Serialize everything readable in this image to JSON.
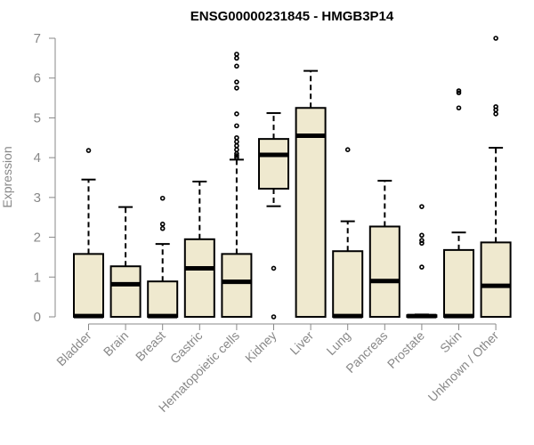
{
  "chart_data": {
    "type": "boxplot",
    "title": "ENSG00000231845 - HMGB3P14",
    "xlabel": "",
    "ylabel": "Expression",
    "ylim": [
      0,
      7
    ],
    "yticks": [
      0,
      1,
      2,
      3,
      4,
      5,
      6,
      7
    ],
    "box_color": "#efe9cf",
    "categories": [
      "Bladder",
      "Brain",
      "Breast",
      "Gastric",
      "Hematopoietic cells",
      "Kidney",
      "Liver",
      "Lung",
      "Pancreas",
      "Prostate",
      "Skin",
      "Unknown / Other"
    ],
    "boxes": [
      {
        "name": "Bladder",
        "min": 0,
        "q1": 0,
        "median": 0.02,
        "q3": 1.58,
        "max": 3.45,
        "outliers": [
          4.18
        ]
      },
      {
        "name": "Brain",
        "min": 0,
        "q1": 0,
        "median": 0.82,
        "q3": 1.27,
        "max": 2.76,
        "outliers": []
      },
      {
        "name": "Breast",
        "min": 0,
        "q1": 0,
        "median": 0.02,
        "q3": 0.89,
        "max": 1.83,
        "outliers": [
          2.22,
          2.33,
          2.98
        ]
      },
      {
        "name": "Gastric",
        "min": 0,
        "q1": 0,
        "median": 1.22,
        "q3": 1.95,
        "max": 3.4,
        "outliers": []
      },
      {
        "name": "Hematopoietic cells",
        "min": 0,
        "q1": 0,
        "median": 0.88,
        "q3": 1.58,
        "max": 3.95,
        "outliers": [
          4.0,
          4.05,
          4.1,
          4.2,
          4.3,
          4.4,
          4.5,
          4.8,
          5.1,
          5.75,
          5.9,
          6.3,
          6.5,
          6.6
        ]
      },
      {
        "name": "Kidney",
        "min": 2.78,
        "q1": 3.22,
        "median": 4.07,
        "q3": 4.47,
        "max": 5.12,
        "outliers": [
          0,
          1.22
        ]
      },
      {
        "name": "Liver",
        "min": 0,
        "q1": 0,
        "median": 4.55,
        "q3": 5.25,
        "max": 6.18,
        "outliers": []
      },
      {
        "name": "Lung",
        "min": 0,
        "q1": 0,
        "median": 0.02,
        "q3": 1.65,
        "max": 2.4,
        "outliers": [
          4.2
        ]
      },
      {
        "name": "Pancreas",
        "min": 0,
        "q1": 0,
        "median": 0.9,
        "q3": 2.27,
        "max": 3.42,
        "outliers": []
      },
      {
        "name": "Prostate",
        "min": 0,
        "q1": 0,
        "median": 0.02,
        "q3": 0.04,
        "max": 0.06,
        "outliers": [
          1.25,
          1.85,
          1.92,
          2.05,
          2.77
        ]
      },
      {
        "name": "Skin",
        "min": 0,
        "q1": 0,
        "median": 0.02,
        "q3": 1.68,
        "max": 2.12,
        "outliers": [
          5.25,
          5.63,
          5.68
        ]
      },
      {
        "name": "Unknown / Other",
        "min": 0,
        "q1": 0,
        "median": 0.78,
        "q3": 1.87,
        "max": 4.25,
        "outliers": [
          5.1,
          5.2,
          5.28,
          7.0
        ]
      }
    ]
  }
}
